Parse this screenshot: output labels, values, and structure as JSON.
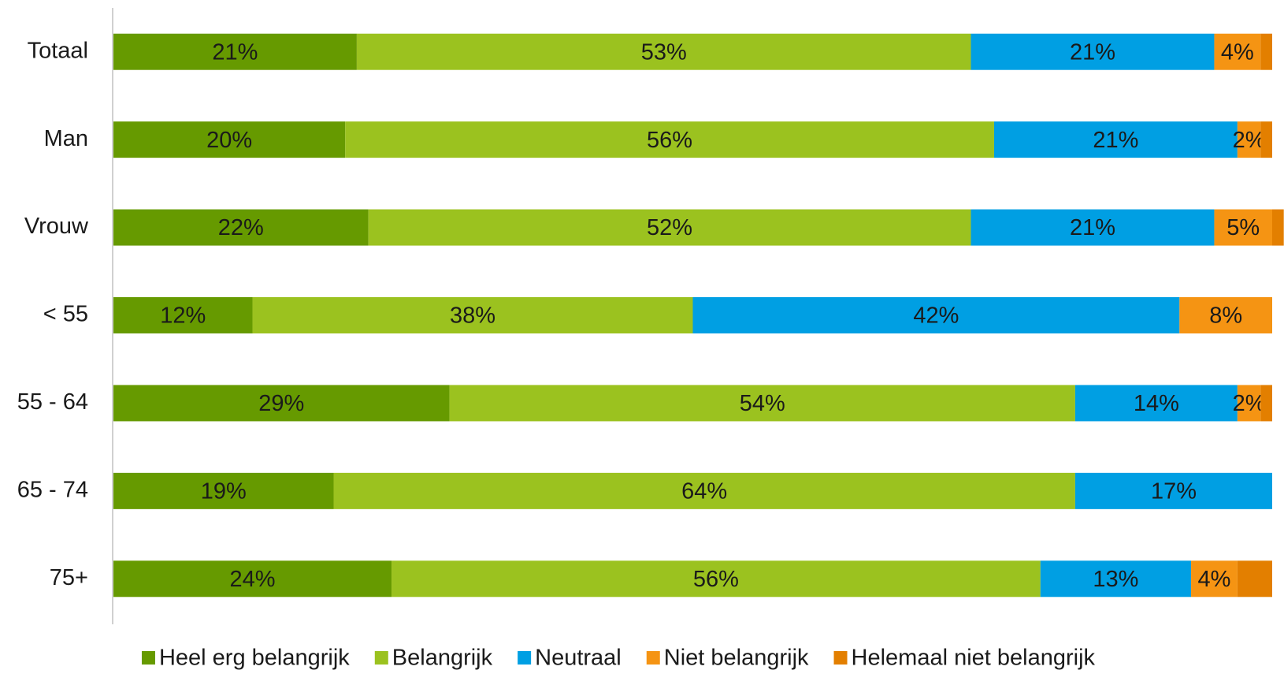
{
  "chart_data": {
    "type": "stacked-bar-horizontal",
    "categories": [
      "Totaal",
      "Man",
      "Vrouw",
      "< 55",
      "55 - 64",
      "65 - 74",
      "75+"
    ],
    "xlim": [
      0,
      100
    ],
    "series": [
      {
        "name": "Heel erg belangrijk",
        "color": "#669a00",
        "values": [
          21,
          20,
          22,
          12,
          29,
          19,
          24
        ],
        "value_labels": [
          "21%",
          "20%",
          "22%",
          "12%",
          "29%",
          "19%",
          "24%"
        ]
      },
      {
        "name": "Belangrijk",
        "color": "#9bc21f",
        "values": [
          53,
          56,
          52,
          38,
          54,
          64,
          56
        ],
        "value_labels": [
          "53%",
          "56%",
          "52%",
          "38%",
          "54%",
          "64%",
          "56%"
        ]
      },
      {
        "name": "Neutraal",
        "color": "#009fe3",
        "values": [
          21,
          21,
          21,
          42,
          14,
          17,
          13
        ],
        "value_labels": [
          "21%",
          "21%",
          "21%",
          "42%",
          "14%",
          "17%",
          "13%"
        ]
      },
      {
        "name": "Niet belangrijk",
        "color": "#f59413",
        "values": [
          4,
          2,
          5,
          8,
          2,
          0,
          4
        ],
        "value_labels": [
          "4%",
          "2%",
          "5%",
          "8%",
          "2%",
          null,
          "4%"
        ]
      },
      {
        "name": "Helemaal niet belangrijk",
        "color": "#e37f00",
        "values": [
          1,
          1,
          1,
          0,
          1,
          0,
          3
        ],
        "value_labels": [
          null,
          null,
          null,
          null,
          null,
          null,
          null
        ]
      }
    ]
  }
}
